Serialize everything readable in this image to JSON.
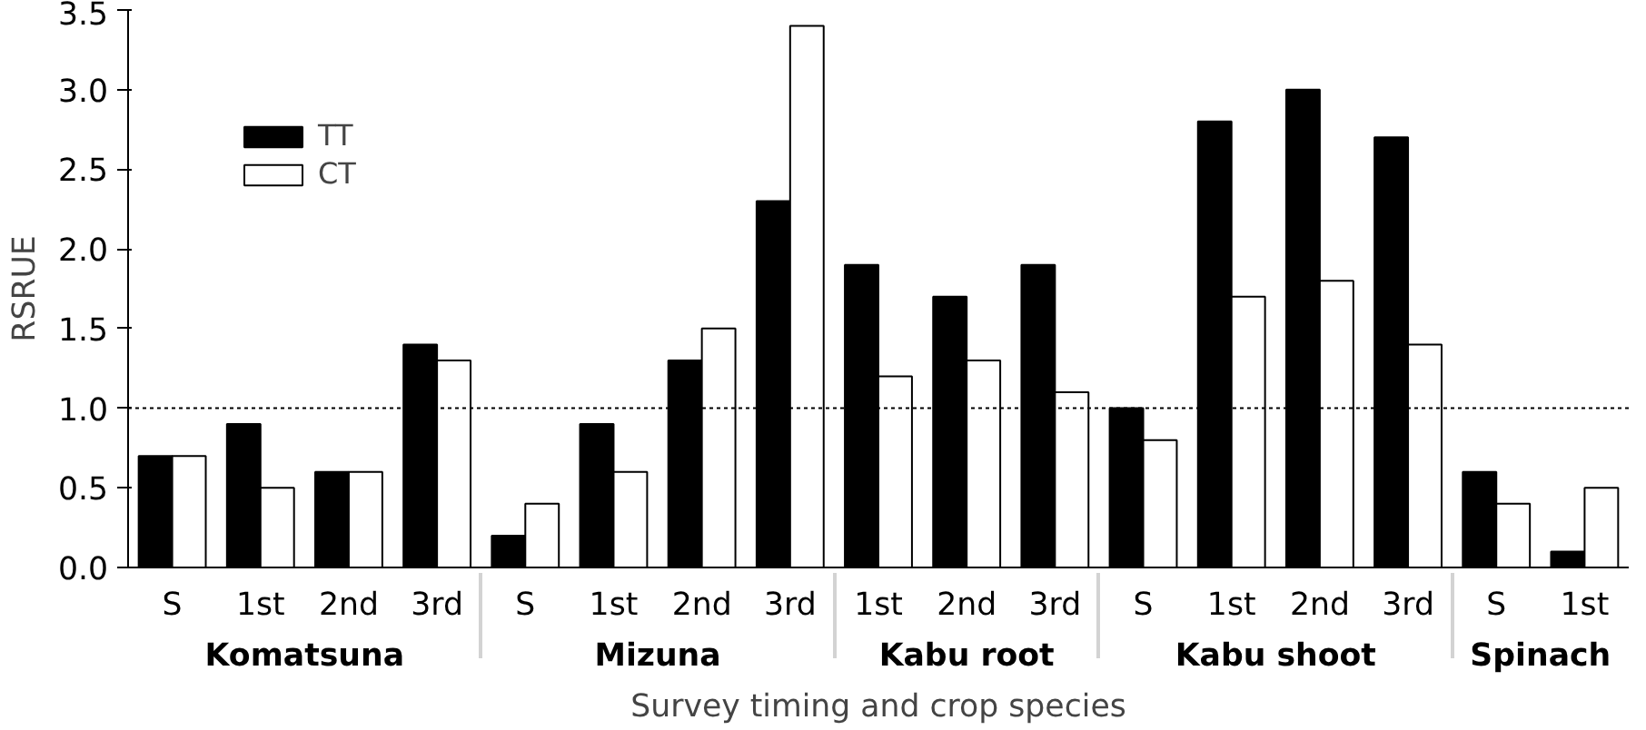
{
  "chart_data": {
    "type": "bar",
    "categories": [
      "S",
      "1st",
      "2nd",
      "3rd",
      "S",
      "1st",
      "2nd",
      "3rd",
      "1st",
      "2nd",
      "3rd",
      "S",
      "1st",
      "2nd",
      "3rd",
      "S",
      "1st"
    ],
    "annotations": [
      "Komatsuna",
      "Mizuna",
      "Kabu root",
      "Kabu shoot",
      "Spinach"
    ],
    "series": [
      {
        "name": "TT",
        "color": "#000000",
        "values": [
          0.7,
          0.9,
          0.6,
          1.4,
          0.2,
          0.9,
          1.3,
          2.3,
          1.9,
          1.7,
          1.9,
          1.0,
          2.8,
          3.0,
          2.7,
          0.6,
          0.1
        ]
      },
      {
        "name": "CT",
        "color": "#ffffff",
        "values": [
          0.7,
          0.5,
          0.6,
          1.3,
          0.4,
          0.6,
          1.5,
          3.4,
          1.2,
          1.3,
          1.1,
          0.8,
          1.7,
          1.8,
          1.4,
          0.4,
          0.5
        ]
      }
    ],
    "xlabel": "Survey timing and crop species",
    "ylabel": "RSRUE",
    "ylim": [
      0,
      3.5
    ],
    "yticks": [
      {
        "value": 0,
        "label": "0.0"
      },
      {
        "value": 0.5,
        "label": "0.5"
      },
      {
        "value": 1,
        "label": "1.0"
      },
      {
        "value": 1.5,
        "label": "1.5"
      },
      {
        "value": 2,
        "label": "2.0"
      },
      {
        "value": 2.5,
        "label": "2.5"
      },
      {
        "value": 3,
        "label": "3.0"
      },
      {
        "value": 3.5,
        "label": "3.5"
      }
    ],
    "ref_lines": [
      {
        "axis": "y",
        "value": 1,
        "line_style": "dotted"
      }
    ],
    "grid": false,
    "legend": "top left"
  }
}
